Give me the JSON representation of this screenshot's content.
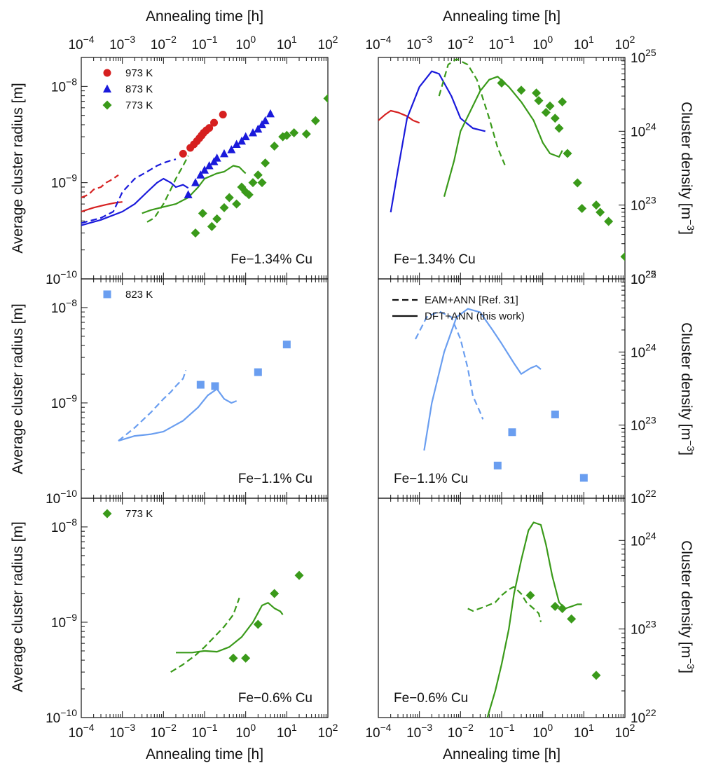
{
  "figure": {
    "xlabel": "Annealing time [h]",
    "ylabel_left": "Average cluster radius [m]",
    "ylabel_right": "Cluster density [m",
    "ylabel_right_sup": "−3",
    "ylabel_right_close": "]"
  },
  "colors": {
    "red": "#d62020",
    "blue": "#1a1adb",
    "green": "#3a9a1a",
    "lightblue": "#6a9ef0"
  },
  "line_styles": {
    "eam_label": "EAM+ANN [Ref. 31]",
    "dft_label": "DFT+ANN (this work)"
  },
  "chart_data": [
    {
      "id": "radius-top",
      "type": "scatter",
      "panel_label": "Fe−1.34% Cu",
      "xscale": "log",
      "xlim": [
        0.0001,
        100
      ],
      "xticks": [
        "10−4",
        "10−3",
        "10−2",
        "10−1",
        "100",
        "101",
        "102"
      ],
      "yscale": "log",
      "ylim": [
        1e-10,
        2e-08
      ],
      "yticks": [
        "10−10",
        "10−9",
        "10−8"
      ],
      "legend": [
        {
          "label": "973 K",
          "marker": "circle",
          "color": "red"
        },
        {
          "label": "873 K",
          "marker": "triangle",
          "color": "blue"
        },
        {
          "label": "773 K",
          "marker": "diamond",
          "color": "green"
        }
      ],
      "points": [
        {
          "name": "973 K",
          "marker": "circle",
          "color": "red",
          "x": [
            0.03,
            0.045,
            0.055,
            0.065,
            0.075,
            0.085,
            0.095,
            0.11,
            0.13,
            0.17,
            0.28
          ],
          "y": [
            2e-09,
            2.3e-09,
            2.5e-09,
            2.7e-09,
            2.9e-09,
            3.1e-09,
            3.3e-09,
            3.5e-09,
            3.7e-09,
            4.2e-09,
            5.1e-09
          ]
        },
        {
          "name": "873 K",
          "marker": "triangle",
          "color": "blue",
          "x": [
            0.04,
            0.06,
            0.08,
            0.1,
            0.13,
            0.17,
            0.2,
            0.3,
            0.45,
            0.6,
            0.8,
            1.0,
            1.5,
            2.0,
            2.5,
            3.0,
            4.0
          ],
          "y": [
            7.5e-10,
            1e-09,
            1.2e-09,
            1.35e-09,
            1.5e-09,
            1.65e-09,
            1.8e-09,
            2e-09,
            2.2e-09,
            2.5e-09,
            2.7e-09,
            3e-09,
            3.3e-09,
            3.6e-09,
            4e-09,
            4.4e-09,
            5.2e-09
          ]
        },
        {
          "name": "773 K",
          "marker": "diamond",
          "color": "green",
          "x": [
            0.06,
            0.09,
            0.15,
            0.2,
            0.3,
            0.4,
            0.6,
            0.8,
            1.0,
            1.2,
            1.5,
            2.0,
            2.5,
            3.0,
            5.0,
            8.0,
            10,
            15,
            30,
            50,
            100
          ],
          "y": [
            3e-10,
            4.8e-10,
            3.5e-10,
            4.2e-10,
            5.5e-10,
            7e-10,
            6e-10,
            9e-10,
            8e-10,
            7.5e-10,
            1e-09,
            1.2e-09,
            1e-09,
            1.6e-09,
            2.4e-09,
            3e-09,
            3.1e-09,
            3.3e-09,
            3.2e-09,
            4.4e-09,
            7.5e-09
          ]
        }
      ],
      "lines": [
        {
          "color": "red",
          "style": "dashed",
          "x": [
            0.0001,
            0.00015,
            0.0002,
            0.0003,
            0.0004,
            0.0005,
            0.0006,
            0.0008
          ],
          "y": [
            7e-10,
            7.5e-10,
            8.5e-10,
            9e-10,
            1e-09,
            1.05e-09,
            1.1e-09,
            1.2e-09
          ]
        },
        {
          "color": "red",
          "style": "solid",
          "x": [
            0.0001,
            0.0002,
            0.0004,
            0.0007,
            0.001
          ],
          "y": [
            5e-10,
            5.5e-10,
            5.9e-10,
            6.2e-10,
            6.3e-10
          ]
        },
        {
          "color": "blue",
          "style": "dashed",
          "x": [
            0.0001,
            0.0003,
            0.0006,
            0.001,
            0.002,
            0.004,
            0.007,
            0.01,
            0.015,
            0.02
          ],
          "y": [
            3.8e-10,
            4.3e-10,
            5e-10,
            8e-10,
            1.1e-09,
            1.3e-09,
            1.5e-09,
            1.6e-09,
            1.7e-09,
            1.75e-09
          ]
        },
        {
          "color": "blue",
          "style": "solid",
          "x": [
            0.0001,
            0.0003,
            0.001,
            0.002,
            0.004,
            0.007,
            0.01,
            0.015,
            0.02,
            0.03,
            0.04
          ],
          "y": [
            3.6e-10,
            4.1e-10,
            5e-10,
            6e-10,
            8e-10,
            1e-09,
            1.1e-09,
            1e-09,
            9e-10,
            9.5e-10,
            8.8e-10
          ]
        },
        {
          "color": "green",
          "style": "dashed",
          "x": [
            0.004,
            0.006,
            0.01,
            0.015,
            0.02,
            0.03,
            0.04
          ],
          "y": [
            3.9e-10,
            4.3e-10,
            6e-10,
            8.5e-10,
            1.1e-09,
            1.5e-09,
            1.9e-09
          ]
        },
        {
          "color": "green",
          "style": "solid",
          "x": [
            0.003,
            0.005,
            0.01,
            0.02,
            0.04,
            0.07,
            0.1,
            0.2,
            0.3,
            0.5,
            0.7,
            0.9,
            1.0
          ],
          "y": [
            4.8e-10,
            5.2e-10,
            5.6e-10,
            6e-10,
            7e-10,
            9e-10,
            1.1e-09,
            1.25e-09,
            1.3e-09,
            1.5e-09,
            1.45e-09,
            1.3e-09,
            1.25e-09
          ]
        }
      ]
    },
    {
      "id": "density-top",
      "type": "scatter",
      "panel_label": "Fe−1.34% Cu",
      "xscale": "log",
      "xlim": [
        0.0001,
        100
      ],
      "xticks": [
        "10−4",
        "10−3",
        "10−2",
        "10−1",
        "100",
        "101",
        "102"
      ],
      "yscale": "log",
      "ylim": [
        1e+22,
        1e+25
      ],
      "yticks": [
        "1022",
        "1023",
        "1024",
        "1025"
      ],
      "points": [
        {
          "name": "773 K",
          "marker": "diamond",
          "color": "green",
          "x": [
            0.1,
            0.3,
            0.7,
            0.8,
            1.2,
            1.5,
            2.0,
            2.5,
            3.0,
            4.0,
            7.0,
            9.0,
            20,
            25,
            40,
            100
          ],
          "y": [
            4.5e+24,
            3.6e+24,
            3.3e+24,
            2.6e+24,
            1.8e+24,
            2.2e+24,
            1.5e+24,
            1.1e+24,
            2.5e+24,
            5e+23,
            2e+23,
            9e+22,
            1e+23,
            8e+22,
            6e+22,
            2e+22
          ]
        }
      ],
      "lines": [
        {
          "color": "red",
          "style": "solid",
          "x": [
            0.0001,
            0.00015,
            0.0002,
            0.0003,
            0.0005,
            0.0007,
            0.001
          ],
          "y": [
            1.4e+24,
            1.7e+24,
            1.9e+24,
            1.8e+24,
            1.6e+24,
            1.4e+24,
            1.3e+24
          ]
        },
        {
          "color": "blue",
          "style": "solid",
          "x": [
            0.0002,
            0.0003,
            0.0005,
            0.001,
            0.002,
            0.003,
            0.006,
            0.01,
            0.02,
            0.04
          ],
          "y": [
            8e+22,
            3e+23,
            1.5e+24,
            4e+24,
            6.5e+24,
            6e+24,
            3e+24,
            1.5e+24,
            1.1e+24,
            1e+24
          ]
        },
        {
          "color": "green",
          "style": "dashed",
          "x": [
            0.003,
            0.005,
            0.008,
            0.015,
            0.025,
            0.05,
            0.08,
            0.12
          ],
          "y": [
            3e+24,
            8e+24,
            9.5e+24,
            8e+24,
            5e+24,
            1.5e+24,
            6e+23,
            3.5e+23
          ]
        },
        {
          "color": "green",
          "style": "solid",
          "x": [
            0.004,
            0.007,
            0.01,
            0.03,
            0.05,
            0.08,
            0.15,
            0.3,
            0.6,
            1.0,
            1.5,
            2.5,
            3.0
          ],
          "y": [
            1.3e+23,
            4e+23,
            1e+24,
            3.5e+24,
            5e+24,
            5.5e+24,
            4e+24,
            2.5e+24,
            1.4e+24,
            7e+23,
            5e+23,
            4.5e+23,
            5.5e+23
          ]
        }
      ]
    },
    {
      "id": "radius-mid",
      "type": "scatter",
      "panel_label": "Fe−1.1% Cu",
      "xscale": "log",
      "xlim": [
        0.0001,
        100
      ],
      "yscale": "log",
      "ylim": [
        1e-10,
        2e-08
      ],
      "yticks": [
        "10−10",
        "10−9",
        "10−8"
      ],
      "legend": [
        {
          "label": "823 K",
          "marker": "square",
          "color": "lightblue"
        }
      ],
      "points": [
        {
          "name": "823 K",
          "marker": "square",
          "color": "lightblue",
          "x": [
            0.08,
            0.18,
            2.0,
            10.0
          ],
          "y": [
            1.55e-09,
            1.5e-09,
            2.1e-09,
            4.1e-09
          ]
        }
      ],
      "lines": [
        {
          "color": "lightblue",
          "style": "dashed",
          "x": [
            0.0008,
            0.002,
            0.005,
            0.01,
            0.015,
            0.02,
            0.03,
            0.035
          ],
          "y": [
            4e-10,
            5.5e-10,
            8e-10,
            1.1e-09,
            1.3e-09,
            1.5e-09,
            1.8e-09,
            2.2e-09
          ]
        },
        {
          "color": "lightblue",
          "style": "solid",
          "x": [
            0.0008,
            0.002,
            0.005,
            0.01,
            0.03,
            0.07,
            0.12,
            0.2,
            0.3,
            0.45,
            0.6
          ],
          "y": [
            4e-10,
            4.5e-10,
            4.7e-10,
            5e-10,
            6.5e-10,
            9e-10,
            1.2e-09,
            1.4e-09,
            1.1e-09,
            1e-09,
            1.05e-09
          ]
        }
      ]
    },
    {
      "id": "density-mid",
      "type": "scatter",
      "panel_label": "Fe−1.1% Cu",
      "xscale": "log",
      "xlim": [
        0.0001,
        100
      ],
      "yscale": "log",
      "ylim": [
        1e+22,
        1e+25
      ],
      "yticks": [
        "1022",
        "1023",
        "1024",
        "1025"
      ],
      "legend": [
        {
          "label": "EAM+ANN [Ref. 31]",
          "style": "dashed"
        },
        {
          "label": "DFT+ANN (this work)",
          "style": "solid"
        }
      ],
      "points": [
        {
          "name": "823 K",
          "marker": "square",
          "color": "lightblue",
          "x": [
            0.08,
            0.18,
            2.0,
            10.0
          ],
          "y": [
            2.8e+22,
            8e+22,
            1.4e+23,
            1.9e+22
          ]
        }
      ],
      "lines": [
        {
          "color": "lightblue",
          "style": "dashed",
          "x": [
            0.0008,
            0.0015,
            0.003,
            0.006,
            0.01,
            0.015,
            0.02,
            0.03,
            0.035
          ],
          "y": [
            1.5e+24,
            3e+24,
            3.6e+24,
            3e+24,
            1.5e+24,
            6e+23,
            2.5e+23,
            1.5e+23,
            1.2e+23
          ]
        },
        {
          "color": "lightblue",
          "style": "solid",
          "x": [
            0.0013,
            0.002,
            0.004,
            0.008,
            0.015,
            0.03,
            0.06,
            0.1,
            0.2,
            0.3,
            0.5,
            0.7,
            0.9
          ],
          "y": [
            4.5e+22,
            2e+23,
            1e+24,
            3e+24,
            3.9e+24,
            3.5e+24,
            2e+24,
            1.3e+24,
            7e+23,
            5e+23,
            6e+23,
            6.5e+23,
            5.8e+23
          ]
        }
      ]
    },
    {
      "id": "radius-bottom",
      "type": "scatter",
      "panel_label": "Fe−0.6% Cu",
      "xscale": "log",
      "xlim": [
        0.0001,
        100
      ],
      "xticks": [
        "10−4",
        "10−3",
        "10−2",
        "10−1",
        "100",
        "101",
        "102"
      ],
      "yscale": "log",
      "ylim": [
        1e-10,
        2e-08
      ],
      "yticks": [
        "10−10",
        "10−9",
        "10−8"
      ],
      "legend": [
        {
          "label": "773 K",
          "marker": "diamond",
          "color": "green"
        }
      ],
      "points": [
        {
          "name": "773 K",
          "marker": "diamond",
          "color": "green",
          "x": [
            0.5,
            1.0,
            2.0,
            5.0,
            20.0
          ],
          "y": [
            4.2e-10,
            4.2e-10,
            9.5e-10,
            2e-09,
            3.1e-09
          ]
        }
      ],
      "lines": [
        {
          "color": "green",
          "style": "dashed",
          "x": [
            0.015,
            0.03,
            0.06,
            0.1,
            0.2,
            0.3,
            0.5,
            0.6,
            0.7
          ],
          "y": [
            3e-10,
            3.6e-10,
            4.5e-10,
            5.5e-10,
            7.5e-10,
            9e-10,
            1.2e-09,
            1.5e-09,
            1.8e-09
          ]
        },
        {
          "color": "green",
          "style": "solid",
          "x": [
            0.02,
            0.05,
            0.1,
            0.2,
            0.4,
            0.8,
            1.5,
            2.5,
            3.5,
            5.0,
            7.0,
            8.0
          ],
          "y": [
            4.8e-10,
            4.8e-10,
            5e-10,
            4.9e-10,
            5.5e-10,
            7e-10,
            1e-09,
            1.5e-09,
            1.6e-09,
            1.4e-09,
            1.3e-09,
            1.2e-09
          ]
        }
      ]
    },
    {
      "id": "density-bottom",
      "type": "scatter",
      "panel_label": "Fe−0.6% Cu",
      "xscale": "log",
      "xlim": [
        0.0001,
        100
      ],
      "xticks": [
        "10−4",
        "10−3",
        "10−2",
        "10−1",
        "100",
        "101",
        "102"
      ],
      "yscale": "log",
      "ylim": [
        1e+22,
        3e+24
      ],
      "yticks": [
        "1022",
        "1023",
        "1024"
      ],
      "points": [
        {
          "name": "773 K",
          "marker": "diamond",
          "color": "green",
          "x": [
            0.5,
            2.0,
            3.0,
            5.0,
            20.0
          ],
          "y": [
            2.4e+23,
            1.8e+23,
            1.7e+23,
            1.3e+23,
            3e+22
          ]
        }
      ],
      "lines": [
        {
          "color": "green",
          "style": "dashed",
          "x": [
            0.015,
            0.02,
            0.04,
            0.07,
            0.1,
            0.15,
            0.2,
            0.3,
            0.4,
            0.6,
            0.8,
            0.9
          ],
          "y": [
            1.7e+23,
            1.6e+23,
            1.8e+23,
            2e+23,
            2.4e+23,
            2.8e+23,
            3e+23,
            2.5e+23,
            2e+23,
            1.7e+23,
            1.5e+23,
            1.2e+23
          ]
        },
        {
          "color": "green",
          "style": "solid",
          "x": [
            0.045,
            0.07,
            0.1,
            0.15,
            0.2,
            0.3,
            0.45,
            0.6,
            0.9,
            1.2,
            1.7,
            2.5,
            3.5,
            5.0,
            7.0,
            9.0
          ],
          "y": [
            1e+22,
            2e+22,
            4e+22,
            1e+23,
            2.5e+23,
            6e+23,
            1.3e+24,
            1.6e+24,
            1.5e+24,
            9e+23,
            4e+23,
            2e+23,
            1.7e+23,
            1.8e+23,
            1.9e+23,
            1.9e+23
          ]
        }
      ]
    }
  ]
}
